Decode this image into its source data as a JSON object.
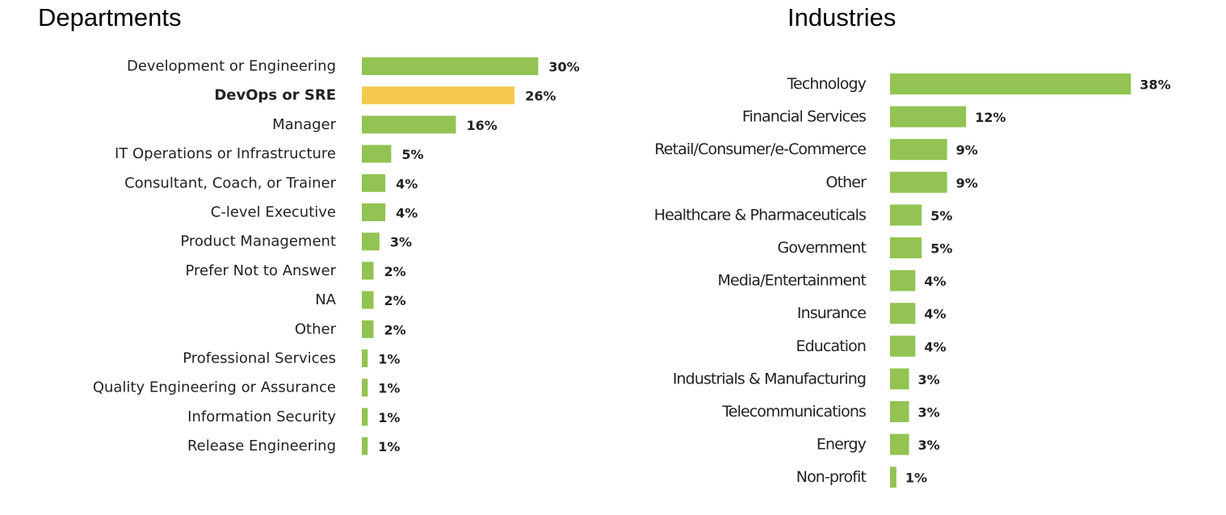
{
  "chart_data": [
    {
      "type": "bar",
      "orientation": "horizontal",
      "title": "Departments",
      "categories": [
        "Development or Engineering",
        "DevOps or SRE",
        "Manager",
        "IT Operations or Infrastructure",
        "Consultant, Coach, or Trainer",
        "C-level Executive",
        "Product Management",
        "Prefer Not to Answer",
        "NA",
        "Other",
        "Professional Services",
        "Quality Engineering or Assurance",
        "Information Security",
        "Release Engineering"
      ],
      "values": [
        30,
        26,
        16,
        5,
        4,
        4,
        3,
        2,
        2,
        2,
        1,
        1,
        1,
        1
      ],
      "value_labels": [
        "30%",
        "26%",
        "16%",
        "5%",
        "4%",
        "4%",
        "3%",
        "2%",
        "2%",
        "2%",
        "1%",
        "1%",
        "1%",
        "1%"
      ],
      "highlighted_category": "DevOps or SRE",
      "bar_color": "#92c353",
      "highlight_color": "#f4c94e",
      "grid": false,
      "legend": "none"
    },
    {
      "type": "bar",
      "orientation": "horizontal",
      "title": "Industries",
      "categories": [
        "Technology",
        "Financial Services",
        "Retail/Consumer/e-Commerce",
        "Other",
        "Healthcare & Pharmaceuticals",
        "Government",
        "Media/Entertainment",
        "Insurance",
        "Education",
        "Industrials & Manufacturing",
        "Telecommunications",
        "Energy",
        "Non-profit"
      ],
      "values": [
        38,
        12,
        9,
        9,
        5,
        5,
        4,
        4,
        4,
        3,
        3,
        3,
        1
      ],
      "value_labels": [
        "38%",
        "12%",
        "9%",
        "9%",
        "5%",
        "5%",
        "4%",
        "4%",
        "4%",
        "3%",
        "3%",
        "3%",
        "1%"
      ],
      "bar_color": "#92c353",
      "grid": false,
      "legend": "none"
    }
  ]
}
